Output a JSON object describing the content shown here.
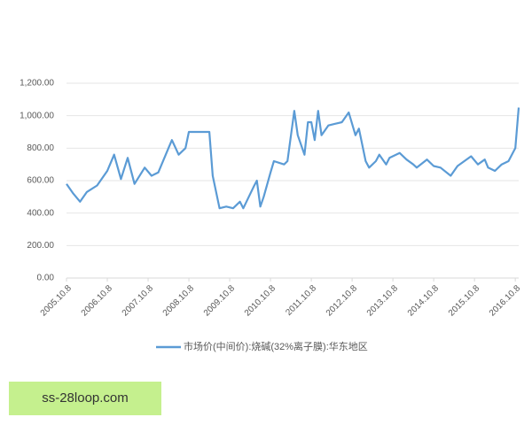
{
  "watermark": "ss-28loop.com",
  "chart_data": {
    "type": "line",
    "ylim": [
      0,
      1200
    ],
    "yticks": [
      {
        "value": 0,
        "label": "0.00"
      },
      {
        "value": 200,
        "label": "200.00"
      },
      {
        "value": 400,
        "label": "400.00"
      },
      {
        "value": 600,
        "label": "600.00"
      },
      {
        "value": 800,
        "label": "800.00"
      },
      {
        "value": 1000,
        "label": "1,000.00"
      },
      {
        "value": 1200,
        "label": "1,200.00"
      }
    ],
    "xlim": [
      "2005.10.8",
      "2016.11.8"
    ],
    "xticks": [
      "2005.10.8",
      "2006.10.8",
      "2007.10.8",
      "2008.10.8",
      "2009.10.8",
      "2010.10.8",
      "2011.10.8",
      "2012.10.8",
      "2013.10.8",
      "2014.10.8",
      "2015.10.8",
      "2016.10.8"
    ],
    "grid": true,
    "legend": "bottom",
    "x": [
      "2005.10.8",
      "2005.12.8",
      "2006.2.8",
      "2006.4.8",
      "2006.7.8",
      "2006.10.8",
      "2006.12.8",
      "2007.2.8",
      "2007.4.8",
      "2007.6.8",
      "2007.9.8",
      "2007.11.8",
      "2008.1.8",
      "2008.4.8",
      "2008.5.8",
      "2008.7.8",
      "2008.9.8",
      "2008.10.8",
      "2009.4.8",
      "2009.5.8",
      "2009.7.8",
      "2009.9.8",
      "2009.11.8",
      "2010.1.8",
      "2010.2.8",
      "2010.5.8",
      "2010.6.8",
      "2010.7.8",
      "2010.8.8",
      "2010.10.8",
      "2010.11.8",
      "2011.2.8",
      "2011.3.8",
      "2011.5.8",
      "2011.6.8",
      "2011.8.8",
      "2011.9.8",
      "2011.10.8",
      "2011.11.8",
      "2011.12.8",
      "2012.1.8",
      "2012.3.8",
      "2012.5.8",
      "2012.7.8",
      "2012.9.8",
      "2012.11.8",
      "2012.12.8",
      "2013.2.8",
      "2013.3.8",
      "2013.5.8",
      "2013.6.8",
      "2013.8.8",
      "2013.9.8",
      "2013.12.8",
      "2014.2.8",
      "2014.4.8",
      "2014.5.8",
      "2014.8.8",
      "2014.10.8",
      "2014.12.8",
      "2015.3.8",
      "2015.5.8",
      "2015.9.8",
      "2015.11.8",
      "2016.1.8",
      "2016.2.8",
      "2016.4.8",
      "2016.6.8",
      "2016.8.8",
      "2016.10.8",
      "2016.11.8"
    ],
    "series": [
      {
        "name": "市场价(中间价):烧碱(32%离子膜):华东地区",
        "color": "#5b9bd5",
        "values": [
          580,
          520,
          470,
          530,
          570,
          660,
          760,
          610,
          740,
          580,
          680,
          630,
          650,
          800,
          850,
          760,
          800,
          900,
          900,
          630,
          430,
          440,
          430,
          470,
          430,
          560,
          600,
          440,
          500,
          650,
          720,
          700,
          720,
          1030,
          880,
          760,
          960,
          960,
          850,
          1030,
          880,
          940,
          950,
          960,
          1020,
          880,
          920,
          720,
          680,
          720,
          760,
          700,
          740,
          770,
          730,
          700,
          680,
          730,
          690,
          680,
          630,
          690,
          750,
          700,
          730,
          680,
          660,
          700,
          720,
          800,
          1050
        ]
      }
    ]
  }
}
